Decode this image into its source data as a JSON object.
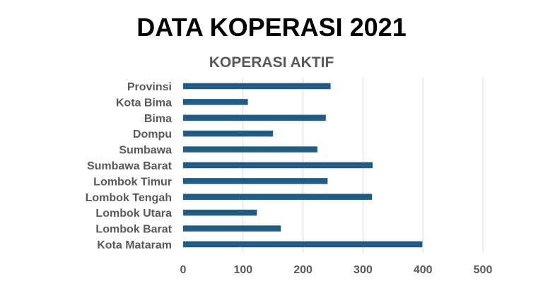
{
  "slide": {
    "title": "DATA KOPERASI 2021"
  },
  "chart_data": {
    "type": "bar",
    "orientation": "horizontal",
    "title": "KOPERASI AKTIF",
    "xlabel": "",
    "ylabel": "",
    "categories": [
      "Provinsi",
      "Kota Bima",
      "Bima",
      "Dompu",
      "Sumbawa",
      "Sumbawa Barat",
      "Lombok Timur",
      "Lombok Tengah",
      "Lombok Utara",
      "Lombok Barat",
      "Kota Mataram"
    ],
    "values": [
      246,
      108,
      238,
      150,
      224,
      316,
      241,
      315,
      123,
      163,
      399
    ],
    "xlim": [
      0,
      500
    ],
    "xticks": [
      0,
      100,
      200,
      300,
      400,
      500
    ],
    "grid": "vertical",
    "legend": "none",
    "bar_color": "#1F5C86",
    "grid_color": "#D9D9D9",
    "label_color": "#595959"
  }
}
